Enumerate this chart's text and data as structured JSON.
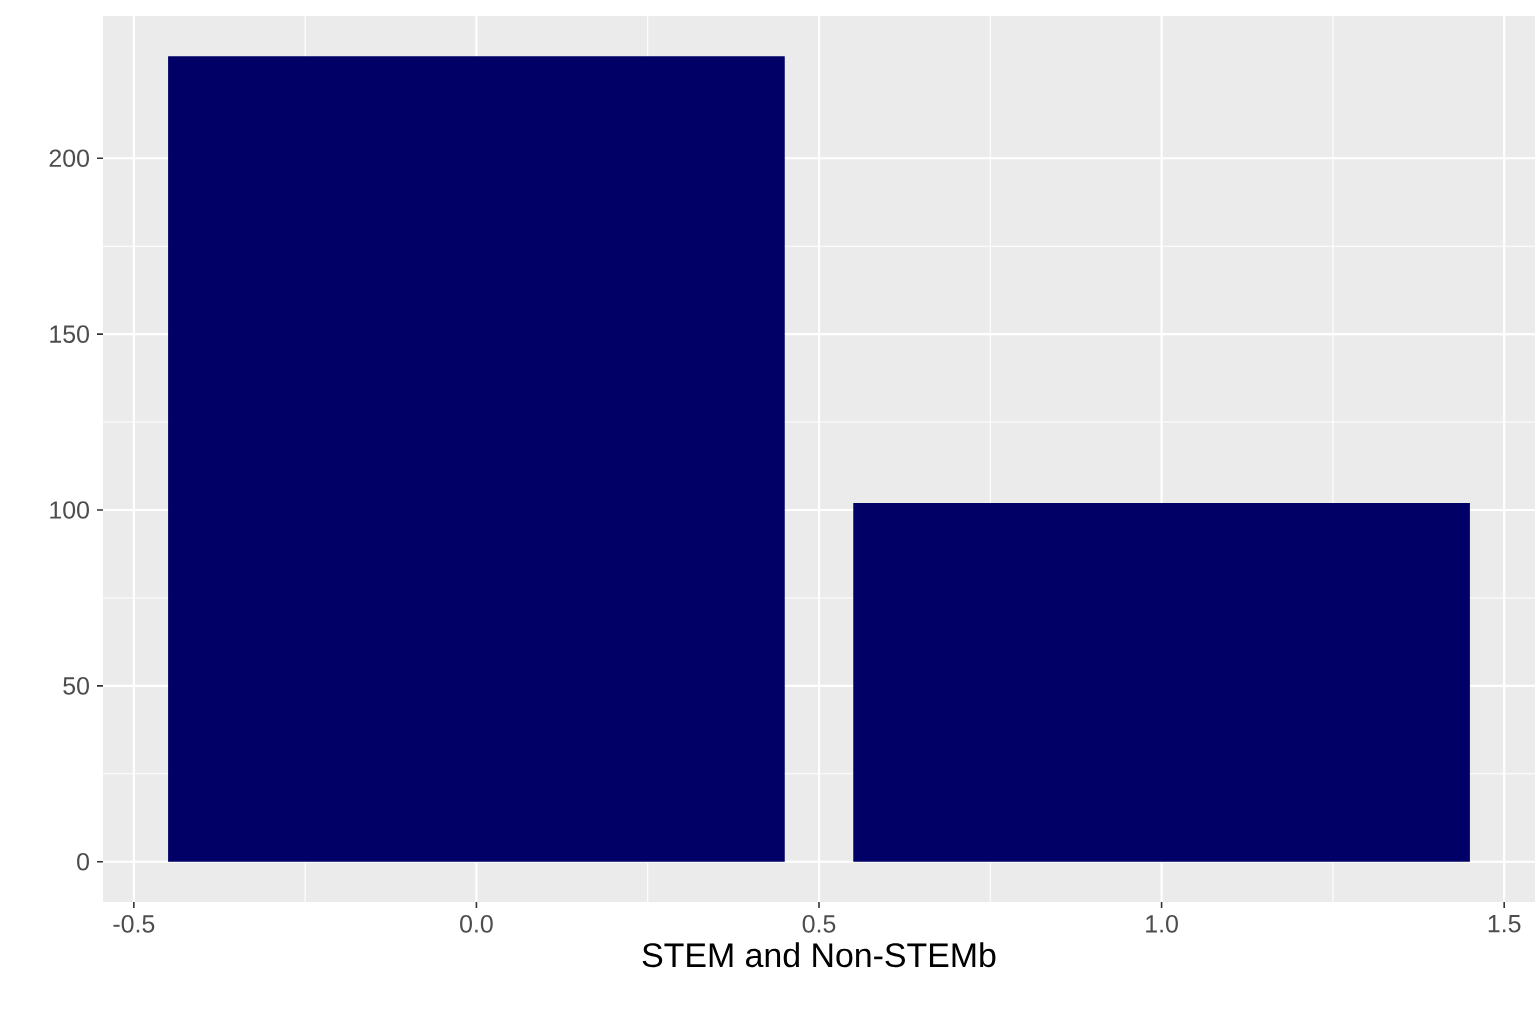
{
  "chart_data": {
    "type": "bar",
    "xlabel": "STEM and Non-STEMb",
    "x": [
      0,
      1
    ],
    "values": [
      229,
      102
    ],
    "color": "#000066",
    "xlim": [
      -0.545,
      1.545
    ],
    "xticks": [
      {
        "value": -0.5,
        "label": "-0.5"
      },
      {
        "value": 0,
        "label": "0.0"
      },
      {
        "value": 0.5,
        "label": "0.5"
      },
      {
        "value": 1,
        "label": "1.0"
      },
      {
        "value": 1.5,
        "label": "1.5"
      }
    ],
    "ylim": [
      -11.45,
      240.45
    ],
    "yticks": [
      0,
      50,
      100,
      150,
      200
    ],
    "grid": true
  }
}
